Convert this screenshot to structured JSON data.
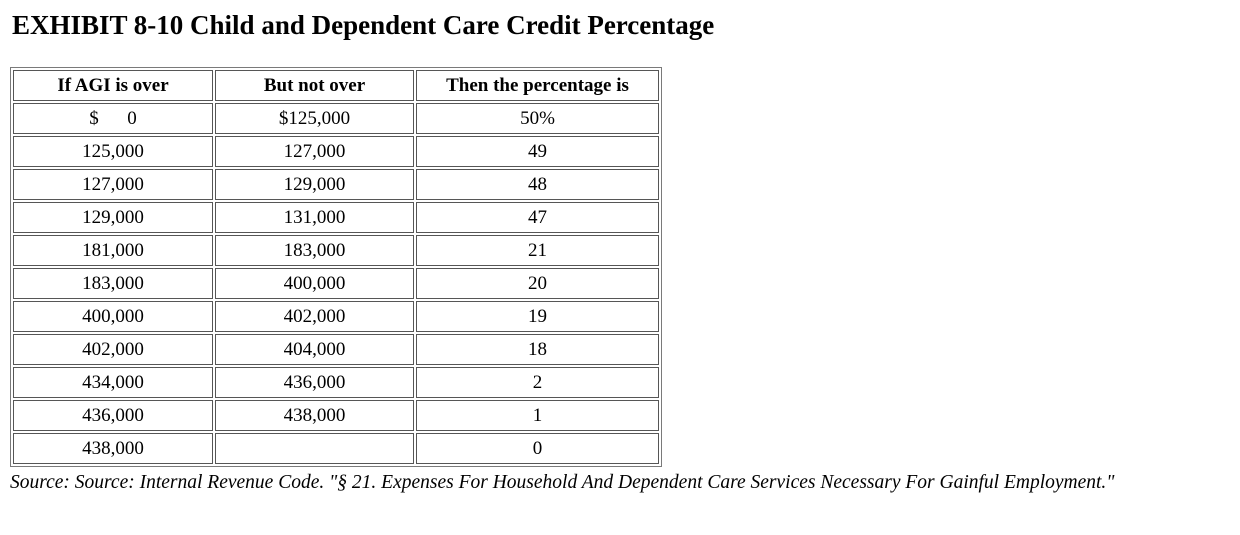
{
  "page": {
    "title": "EXHIBIT 8-10 Child and Dependent Care Credit Percentage",
    "source_note": "Source: Source: Internal Revenue Code. \"§ 21. Expenses For Household And Dependent Care Services Necessary For Gainful Employment.\""
  },
  "chart_data": {
    "type": "table",
    "title": "EXHIBIT 8-10 Child and Dependent Care Credit Percentage",
    "columns": [
      "If AGI is over",
      "But not over",
      "Then the percentage is"
    ],
    "rows": [
      {
        "agi_over": "$      0",
        "but_not_over": "$125,000",
        "percentage": "50%"
      },
      {
        "agi_over": "125,000",
        "but_not_over": "127,000",
        "percentage": "49"
      },
      {
        "agi_over": "127,000",
        "but_not_over": "129,000",
        "percentage": "48"
      },
      {
        "agi_over": "129,000",
        "but_not_over": "131,000",
        "percentage": "47"
      },
      {
        "agi_over": "181,000",
        "but_not_over": "183,000",
        "percentage": "21"
      },
      {
        "agi_over": "183,000",
        "but_not_over": "400,000",
        "percentage": "20"
      },
      {
        "agi_over": "400,000",
        "but_not_over": "402,000",
        "percentage": "19"
      },
      {
        "agi_over": "402,000",
        "but_not_over": "404,000",
        "percentage": "18"
      },
      {
        "agi_over": "434,000",
        "but_not_over": "436,000",
        "percentage": "2"
      },
      {
        "agi_over": "436,000",
        "but_not_over": "438,000",
        "percentage": "1"
      },
      {
        "agi_over": "438,000",
        "but_not_over": "",
        "percentage": "0"
      }
    ]
  }
}
